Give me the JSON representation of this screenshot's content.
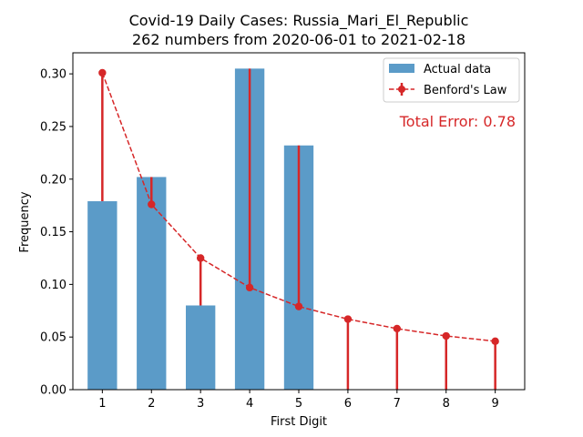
{
  "chart_data": {
    "type": "bar",
    "title": "Covid-19 Daily Cases: Russia_Mari_El_Republic",
    "subtitle": "262 numbers from 2020-06-01 to 2021-02-18",
    "xlabel": "First Digit",
    "ylabel": "Frequency",
    "categories": [
      "1",
      "2",
      "3",
      "4",
      "5",
      "6",
      "7",
      "8",
      "9"
    ],
    "xlim": [
      0.4,
      9.6
    ],
    "ylim": [
      0,
      0.32
    ],
    "yticks": [
      "0.00",
      "0.05",
      "0.10",
      "0.15",
      "0.20",
      "0.25",
      "0.30"
    ],
    "grid": false,
    "legend_position": "top-right",
    "series": [
      {
        "name": "Actual data",
        "kind": "bar",
        "color": "#5b9bc8",
        "values": [
          0.179,
          0.202,
          0.08,
          0.305,
          0.232,
          0.0,
          0.0,
          0.0,
          0.0
        ]
      },
      {
        "name": "Benford's Law",
        "kind": "line-dashed-with-errorbars",
        "color": "#d62728",
        "values": [
          0.301,
          0.176,
          0.125,
          0.097,
          0.079,
          0.067,
          0.058,
          0.051,
          0.046
        ]
      }
    ],
    "annotation": "Total Error: 0.78",
    "annotation_color": "#d62728"
  }
}
